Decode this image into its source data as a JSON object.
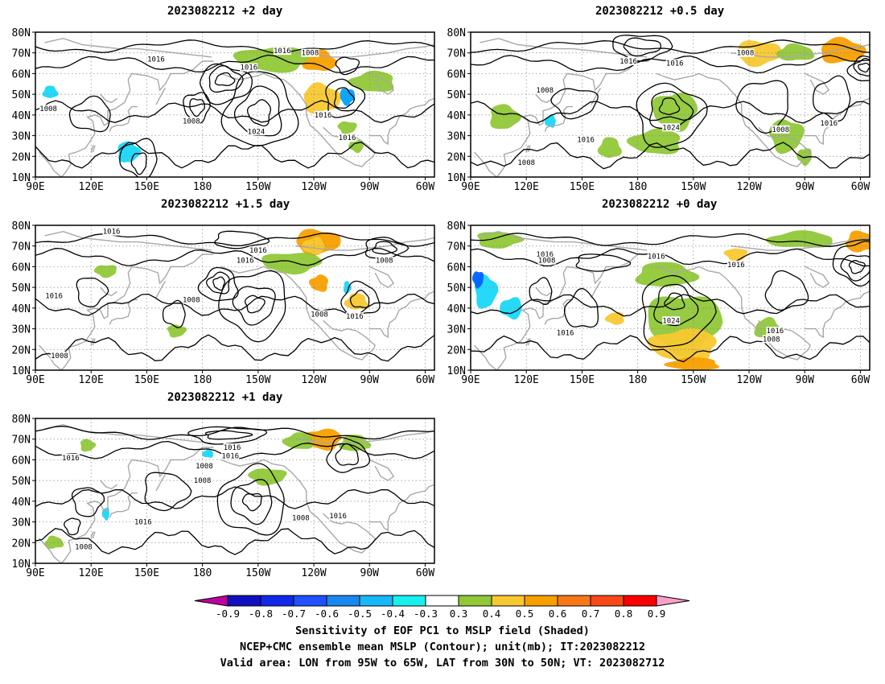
{
  "panels": [
    {
      "title": "2023082212 +2 day",
      "iso": [
        {
          "t": "1016",
          "lon": 155,
          "lat": 67
        },
        {
          "t": "1016",
          "lon": 205,
          "lat": 63
        },
        {
          "t": "1016",
          "lon": 223,
          "lat": 71
        },
        {
          "t": "1008",
          "lon": 238,
          "lat": 70
        },
        {
          "t": "1008",
          "lon": 97,
          "lat": 43
        },
        {
          "t": "1008",
          "lon": 174,
          "lat": 37
        },
        {
          "t": "1024",
          "lon": 209,
          "lat": 32
        },
        {
          "t": "1016",
          "lon": 245,
          "lat": 40
        },
        {
          "t": "1016",
          "lon": 258,
          "lat": 29
        }
      ],
      "shade": [
        {
          "lon": 243,
          "lat": 66,
          "rx": 9,
          "ry": 5,
          "c": "#f8a000"
        },
        {
          "lon": 244,
          "lat": 48,
          "rx": 10,
          "ry": 7,
          "c": "#f8c830"
        },
        {
          "lon": 258,
          "lat": 49,
          "rx": 4,
          "ry": 4,
          "c": "#00a0ff"
        },
        {
          "lon": 218,
          "lat": 67,
          "rx": 20,
          "ry": 6,
          "c": "#90c838"
        },
        {
          "lon": 272,
          "lat": 56,
          "rx": 12,
          "ry": 5,
          "c": "#90c838"
        },
        {
          "lon": 98,
          "lat": 51,
          "rx": 4,
          "ry": 3,
          "c": "#18d8f8"
        },
        {
          "lon": 140,
          "lat": 22,
          "rx": 6,
          "ry": 5,
          "c": "#18d8f8"
        },
        {
          "lon": 258,
          "lat": 34,
          "rx": 5,
          "ry": 3,
          "c": "#90c838"
        },
        {
          "lon": 263,
          "lat": 25,
          "rx": 4,
          "ry": 3,
          "c": "#90c838"
        }
      ],
      "contours": [
        {
          "lon": 192,
          "lat": 57,
          "rx": 5,
          "ry": 3
        },
        {
          "lon": 192,
          "lat": 57,
          "rx": 9,
          "ry": 6
        },
        {
          "lon": 192,
          "lat": 55,
          "rx": 14,
          "ry": 9
        },
        {
          "lon": 177,
          "lat": 44,
          "rx": 4,
          "ry": 4
        },
        {
          "lon": 177,
          "lat": 44,
          "rx": 7,
          "ry": 7
        },
        {
          "lon": 211,
          "lat": 41,
          "rx": 6,
          "ry": 6
        },
        {
          "lon": 211,
          "lat": 41,
          "rx": 12,
          "ry": 12
        },
        {
          "lon": 211,
          "lat": 42,
          "rx": 19,
          "ry": 18
        },
        {
          "lon": 256,
          "lat": 48,
          "rx": 5,
          "ry": 5
        },
        {
          "lon": 256,
          "lat": 48,
          "rx": 10,
          "ry": 9
        },
        {
          "lon": 258,
          "lat": 64,
          "rx": 6,
          "ry": 4
        },
        {
          "lon": 146,
          "lat": 17,
          "rx": 4,
          "ry": 5
        },
        {
          "lon": 146,
          "lat": 19,
          "rx": 10,
          "ry": 9
        },
        {
          "lon": 120,
          "lat": 40,
          "rx": 11,
          "ry": 8
        }
      ]
    },
    {
      "title": "2023082212 +0.5 day",
      "iso": [
        {
          "t": "1016",
          "lon": 175,
          "lat": 66
        },
        {
          "t": "1016",
          "lon": 200,
          "lat": 65
        },
        {
          "t": "1008",
          "lon": 238,
          "lat": 70
        },
        {
          "t": "1008",
          "lon": 130,
          "lat": 52
        },
        {
          "t": "1024",
          "lon": 198,
          "lat": 34
        },
        {
          "t": "1016",
          "lon": 152,
          "lat": 28
        },
        {
          "t": "1008",
          "lon": 120,
          "lat": 17
        },
        {
          "t": "1008",
          "lon": 257,
          "lat": 33
        },
        {
          "t": "1016",
          "lon": 283,
          "lat": 36
        }
      ],
      "shade": [
        {
          "lon": 290,
          "lat": 71,
          "rx": 12,
          "ry": 6,
          "c": "#f8a000"
        },
        {
          "lon": 245,
          "lat": 70,
          "rx": 12,
          "ry": 6,
          "c": "#f8c830"
        },
        {
          "lon": 200,
          "lat": 42,
          "rx": 12,
          "ry": 9,
          "c": "#90c838"
        },
        {
          "lon": 190,
          "lat": 27,
          "rx": 14,
          "ry": 6,
          "c": "#90c838"
        },
        {
          "lon": 165,
          "lat": 24,
          "rx": 6,
          "ry": 5,
          "c": "#90c838"
        },
        {
          "lon": 108,
          "lat": 39,
          "rx": 8,
          "ry": 6,
          "c": "#90c838"
        },
        {
          "lon": 260,
          "lat": 30,
          "rx": 9,
          "ry": 8,
          "c": "#90c838"
        },
        {
          "lon": 270,
          "lat": 20,
          "rx": 4,
          "ry": 4,
          "c": "#90c838"
        },
        {
          "lon": 133,
          "lat": 37,
          "rx": 3,
          "ry": 3,
          "c": "#18d8f8"
        },
        {
          "lon": 265,
          "lat": 70,
          "rx": 10,
          "ry": 4,
          "c": "#90c838"
        }
      ],
      "contours": [
        {
          "lon": 182,
          "lat": 73,
          "rx": 10,
          "ry": 4
        },
        {
          "lon": 182,
          "lat": 73,
          "rx": 16,
          "ry": 6
        },
        {
          "lon": 302,
          "lat": 63,
          "rx": 3,
          "ry": 2
        },
        {
          "lon": 302,
          "lat": 63,
          "rx": 5,
          "ry": 4
        },
        {
          "lon": 302,
          "lat": 62,
          "rx": 8,
          "ry": 6
        },
        {
          "lon": 197,
          "lat": 44,
          "rx": 5,
          "ry": 4
        },
        {
          "lon": 197,
          "lat": 42,
          "rx": 11,
          "ry": 9
        },
        {
          "lon": 197,
          "lat": 40,
          "rx": 18,
          "ry": 15
        },
        {
          "lon": 146,
          "lat": 46,
          "rx": 12,
          "ry": 7
        },
        {
          "lon": 248,
          "lat": 45,
          "rx": 14,
          "ry": 12
        },
        {
          "lon": 285,
          "lat": 48,
          "rx": 10,
          "ry": 10
        }
      ]
    },
    {
      "title": "2023082212 +1.5 day",
      "iso": [
        {
          "t": "1016",
          "lon": 131,
          "lat": 77
        },
        {
          "t": "1016",
          "lon": 210,
          "lat": 68
        },
        {
          "t": "1016",
          "lon": 203,
          "lat": 63
        },
        {
          "t": "1008",
          "lon": 278,
          "lat": 63
        },
        {
          "t": "1008",
          "lon": 174,
          "lat": 44
        },
        {
          "t": "1016",
          "lon": 100,
          "lat": 46
        },
        {
          "t": "1008",
          "lon": 243,
          "lat": 37
        },
        {
          "t": "1016",
          "lon": 262,
          "lat": 36
        },
        {
          "t": "1008",
          "lon": 103,
          "lat": 17
        }
      ],
      "shade": [
        {
          "lon": 242,
          "lat": 72,
          "rx": 12,
          "ry": 6,
          "c": "#f8a000"
        },
        {
          "lon": 228,
          "lat": 62,
          "rx": 16,
          "ry": 5,
          "c": "#90c838"
        },
        {
          "lon": 243,
          "lat": 52,
          "rx": 5,
          "ry": 4,
          "c": "#f8a000"
        },
        {
          "lon": 263,
          "lat": 43,
          "rx": 6,
          "ry": 4,
          "c": "#f8c830"
        },
        {
          "lon": 258,
          "lat": 50,
          "rx": 2,
          "ry": 3,
          "c": "#18d8f8"
        },
        {
          "lon": 166,
          "lat": 29,
          "rx": 5,
          "ry": 3,
          "c": "#90c838"
        },
        {
          "lon": 128,
          "lat": 58,
          "rx": 6,
          "ry": 3,
          "c": "#90c838"
        },
        {
          "lon": 240,
          "lat": 70,
          "rx": 6,
          "ry": 4,
          "c": "#f8c830"
        }
      ],
      "contours": [
        {
          "lon": 189,
          "lat": 52,
          "rx": 3,
          "ry": 3
        },
        {
          "lon": 189,
          "lat": 52,
          "rx": 6,
          "ry": 5
        },
        {
          "lon": 189,
          "lat": 51,
          "rx": 10,
          "ry": 8
        },
        {
          "lon": 278,
          "lat": 69,
          "rx": 6,
          "ry": 3
        },
        {
          "lon": 278,
          "lat": 69,
          "rx": 11,
          "ry": 5
        },
        {
          "lon": 208,
          "lat": 42,
          "rx": 5,
          "ry": 4
        },
        {
          "lon": 208,
          "lat": 42,
          "rx": 11,
          "ry": 9
        },
        {
          "lon": 208,
          "lat": 42,
          "rx": 18,
          "ry": 16
        },
        {
          "lon": 165,
          "lat": 37,
          "rx": 6,
          "ry": 6
        },
        {
          "lon": 265,
          "lat": 44,
          "rx": 5,
          "ry": 4
        },
        {
          "lon": 265,
          "lat": 44,
          "rx": 10,
          "ry": 8
        },
        {
          "lon": 200,
          "lat": 73,
          "rx": 14,
          "ry": 4
        },
        {
          "lon": 120,
          "lat": 48,
          "rx": 8,
          "ry": 7
        }
      ]
    },
    {
      "title": "2023082212 +0 day",
      "iso": [
        {
          "t": "1016",
          "lon": 130,
          "lat": 66
        },
        {
          "t": "1008",
          "lon": 131,
          "lat": 63
        },
        {
          "t": "1016",
          "lon": 190,
          "lat": 65
        },
        {
          "t": "1016",
          "lon": 233,
          "lat": 61
        },
        {
          "t": "1024",
          "lon": 198,
          "lat": 34
        },
        {
          "t": "1016",
          "lon": 141,
          "lat": 28
        },
        {
          "t": "1016",
          "lon": 254,
          "lat": 29
        },
        {
          "t": "1008",
          "lon": 252,
          "lat": 25
        }
      ],
      "shade": [
        {
          "lon": 205,
          "lat": 33,
          "rx": 20,
          "ry": 14,
          "c": "#90c838"
        },
        {
          "lon": 205,
          "lat": 22,
          "rx": 18,
          "ry": 8,
          "c": "#f8c830"
        },
        {
          "lon": 210,
          "lat": 13,
          "rx": 14,
          "ry": 3,
          "c": "#f8a000"
        },
        {
          "lon": 195,
          "lat": 56,
          "rx": 16,
          "ry": 6,
          "c": "#90c838"
        },
        {
          "lon": 98,
          "lat": 48,
          "rx": 6,
          "ry": 8,
          "c": "#18d8f8"
        },
        {
          "lon": 94,
          "lat": 54,
          "rx": 3,
          "ry": 4,
          "c": "#0060ff"
        },
        {
          "lon": 112,
          "lat": 40,
          "rx": 6,
          "ry": 5,
          "c": "#18d8f8"
        },
        {
          "lon": 268,
          "lat": 73,
          "rx": 18,
          "ry": 4,
          "c": "#90c838"
        },
        {
          "lon": 300,
          "lat": 72,
          "rx": 8,
          "ry": 5,
          "c": "#f8a000"
        },
        {
          "lon": 105,
          "lat": 73,
          "rx": 12,
          "ry": 4,
          "c": "#90c838"
        },
        {
          "lon": 233,
          "lat": 66,
          "rx": 6,
          "ry": 3,
          "c": "#f8c830"
        },
        {
          "lon": 168,
          "lat": 35,
          "rx": 5,
          "ry": 3,
          "c": "#f8c830"
        },
        {
          "lon": 250,
          "lat": 30,
          "rx": 7,
          "ry": 5,
          "c": "#90c838"
        }
      ],
      "contours": [
        {
          "lon": 200,
          "lat": 43,
          "rx": 5,
          "ry": 4
        },
        {
          "lon": 200,
          "lat": 41,
          "rx": 11,
          "ry": 10
        },
        {
          "lon": 200,
          "lat": 38,
          "rx": 19,
          "ry": 17
        },
        {
          "lon": 298,
          "lat": 60,
          "rx": 4,
          "ry": 3
        },
        {
          "lon": 298,
          "lat": 60,
          "rx": 8,
          "ry": 6
        },
        {
          "lon": 298,
          "lat": 62,
          "rx": 12,
          "ry": 10
        },
        {
          "lon": 128,
          "lat": 48,
          "rx": 6,
          "ry": 6
        },
        {
          "lon": 150,
          "lat": 39,
          "rx": 9,
          "ry": 9
        },
        {
          "lon": 260,
          "lat": 48,
          "rx": 11,
          "ry": 9
        },
        {
          "lon": 160,
          "lat": 62,
          "rx": 14,
          "ry": 4
        }
      ]
    },
    {
      "title": "2023082212 +1 day",
      "iso": [
        {
          "t": "1016",
          "lon": 196,
          "lat": 66
        },
        {
          "t": "1016",
          "lon": 195,
          "lat": 62
        },
        {
          "t": "1016",
          "lon": 109,
          "lat": 61
        },
        {
          "t": "1008",
          "lon": 181,
          "lat": 57
        },
        {
          "t": "1008",
          "lon": 180,
          "lat": 50
        },
        {
          "t": "1016",
          "lon": 148,
          "lat": 30
        },
        {
          "t": "1008",
          "lon": 116,
          "lat": 18
        },
        {
          "t": "1008",
          "lon": 233,
          "lat": 32
        },
        {
          "t": "1016",
          "lon": 253,
          "lat": 33
        }
      ],
      "shade": [
        {
          "lon": 245,
          "lat": 70,
          "rx": 10,
          "ry": 5,
          "c": "#f8a000"
        },
        {
          "lon": 232,
          "lat": 69,
          "rx": 8,
          "ry": 4,
          "c": "#90c838"
        },
        {
          "lon": 262,
          "lat": 68,
          "rx": 8,
          "ry": 4,
          "c": "#90c838"
        },
        {
          "lon": 118,
          "lat": 67,
          "rx": 4,
          "ry": 3,
          "c": "#90c838"
        },
        {
          "lon": 215,
          "lat": 52,
          "rx": 10,
          "ry": 4,
          "c": "#90c838"
        },
        {
          "lon": 128,
          "lat": 34,
          "rx": 2,
          "ry": 3,
          "c": "#18d8f8"
        },
        {
          "lon": 183,
          "lat": 63,
          "rx": 3,
          "ry": 2,
          "c": "#18d8f8"
        },
        {
          "lon": 100,
          "lat": 20,
          "rx": 5,
          "ry": 3,
          "c": "#90c838"
        }
      ],
      "contours": [
        {
          "lon": 193,
          "lat": 72,
          "rx": 12,
          "ry": 2
        },
        {
          "lon": 193,
          "lat": 72,
          "rx": 20,
          "ry": 4
        },
        {
          "lon": 207,
          "lat": 40,
          "rx": 5,
          "ry": 4
        },
        {
          "lon": 207,
          "lat": 40,
          "rx": 11,
          "ry": 10
        },
        {
          "lon": 207,
          "lat": 40,
          "rx": 18,
          "ry": 16
        },
        {
          "lon": 258,
          "lat": 62,
          "rx": 6,
          "ry": 5
        },
        {
          "lon": 258,
          "lat": 62,
          "rx": 11,
          "ry": 8
        },
        {
          "lon": 160,
          "lat": 45,
          "rx": 12,
          "ry": 9
        },
        {
          "lon": 118,
          "lat": 40,
          "rx": 8,
          "ry": 7
        },
        {
          "lon": 110,
          "lat": 28,
          "rx": 4,
          "ry": 4
        }
      ]
    }
  ],
  "x_ticks": [
    "90E",
    "120E",
    "150E",
    "180",
    "150W",
    "120W",
    "90W",
    "60W"
  ],
  "y_ticks": [
    "80N",
    "70N",
    "60N",
    "50N",
    "40N",
    "30N",
    "20N",
    "10N"
  ],
  "colorbar": {
    "colors": [
      "#c000a0",
      "#1010c0",
      "#1028e8",
      "#2050ff",
      "#1888f0",
      "#18b8f8",
      "#18f0f0",
      "#ffffff",
      "#90c838",
      "#f8c830",
      "#f8a000",
      "#f87818",
      "#f84818",
      "#f80000",
      "#f8a0c8"
    ],
    "labels": [
      "-0.9",
      "-0.8",
      "-0.7",
      "-0.6",
      "-0.5",
      "-0.4",
      "-0.3",
      "0.3",
      "0.4",
      "0.5",
      "0.6",
      "0.7",
      "0.8",
      "0.9"
    ]
  },
  "caption": {
    "line1": "Sensitivity of EOF PC1 to MSLP field (Shaded)",
    "line2": "NCEP+CMC ensemble mean MSLP (Contour); unit(mb); IT:2023082212",
    "line3": "Valid area: LON from 95W to 65W, LAT from 30N to 50N; VT: 2023082712"
  }
}
